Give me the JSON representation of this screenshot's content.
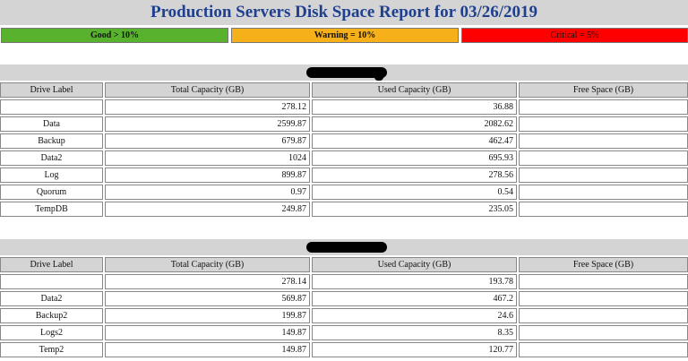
{
  "title": "Production Servers Disk Space Report for 03/26/2019",
  "legend": {
    "good": "Good > 10%",
    "warning": "Warning = 10%",
    "critical": "Critical = 5%",
    "colors": {
      "good": "#58b22e",
      "warning": "#f6b01a",
      "critical": "#ff0000"
    }
  },
  "columns": [
    "Drive Label",
    "Total Capacity (GB)",
    "Used Capacity (GB)",
    "Free Space (GB)"
  ],
  "servers": [
    {
      "name_redacted": true,
      "rows": [
        {
          "label": "",
          "total": "278.12",
          "used": "36.88",
          "free": ""
        },
        {
          "label": "Data",
          "total": "2599.87",
          "used": "2082.62",
          "free": ""
        },
        {
          "label": "Backup",
          "total": "679.87",
          "used": "462.47",
          "free": ""
        },
        {
          "label": "Data2",
          "total": "1024",
          "used": "695.93",
          "free": ""
        },
        {
          "label": "Log",
          "total": "899.87",
          "used": "278.56",
          "free": ""
        },
        {
          "label": "Quorum",
          "total": "0.97",
          "used": "0.54",
          "free": ""
        },
        {
          "label": "TempDB",
          "total": "249.87",
          "used": "235.05",
          "free": ""
        }
      ]
    },
    {
      "name_redacted": true,
      "rows": [
        {
          "label": "",
          "total": "278.14",
          "used": "193.78",
          "free": ""
        },
        {
          "label": "Data2",
          "total": "569.87",
          "used": "467.2",
          "free": ""
        },
        {
          "label": "Backup2",
          "total": "199.87",
          "used": "24.6",
          "free": ""
        },
        {
          "label": "Logs2",
          "total": "149.87",
          "used": "8.35",
          "free": ""
        },
        {
          "label": "Temp2",
          "total": "149.87",
          "used": "120.77",
          "free": ""
        }
      ]
    }
  ]
}
